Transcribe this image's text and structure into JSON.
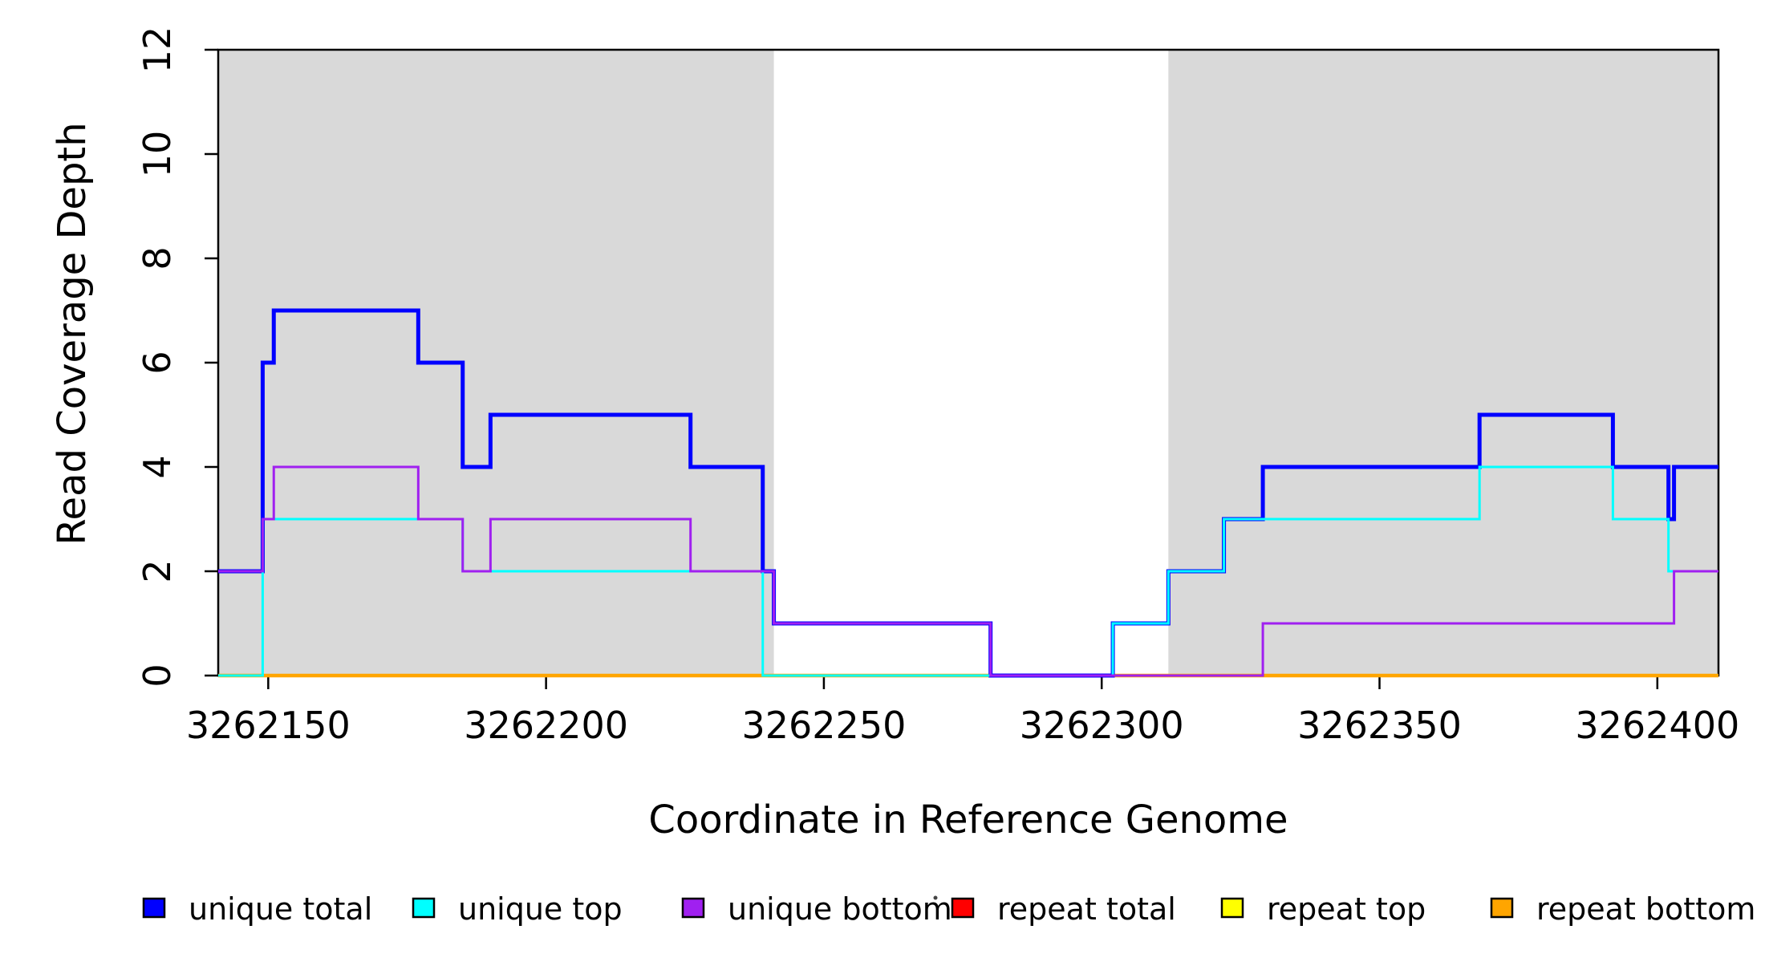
{
  "chart_data": {
    "type": "line",
    "subtype": "step-coverage",
    "title": "",
    "xlabel": "Coordinate in Reference Genome",
    "ylabel": "Read Coverage Depth",
    "xlim": [
      3262141,
      3262411
    ],
    "ylim": [
      0,
      12
    ],
    "grid": false,
    "legend_position": "bottom",
    "x_ticks": [
      3262150,
      3262200,
      3262250,
      3262300,
      3262350,
      3262400
    ],
    "x_tick_labels": [
      "3262150",
      "3262200",
      "3262250",
      "3262300",
      "3262350",
      "3262400"
    ],
    "y_ticks": [
      0,
      2,
      4,
      6,
      8,
      10,
      12
    ],
    "y_tick_labels": [
      "0",
      "2",
      "4",
      "6",
      "8",
      "10",
      "12"
    ],
    "colors": {
      "background": "#FFFFFF",
      "axis": "#000000",
      "shaded_region": "#D9D9D9",
      "unique_total": "#0000FF",
      "unique_top": "#00FFFF",
      "unique_bottom": "#A020F0",
      "repeat_total": "#FF0000",
      "repeat_top": "#FFFF00",
      "repeat_bottom": "#FFA500"
    },
    "shaded_regions": [
      {
        "name": "repeat-region-left",
        "x0": 3262141,
        "x1": 3262241
      },
      {
        "name": "repeat-region-right",
        "x0": 3262312,
        "x1": 3262411
      }
    ],
    "series": [
      {
        "name": "repeat total",
        "key": "repeat_total",
        "color": "#FF0000",
        "width": 3,
        "steps": [
          [
            3262141,
            0
          ]
        ]
      },
      {
        "name": "repeat top",
        "key": "repeat_top",
        "color": "#FFFF00",
        "width": 3,
        "steps": [
          [
            3262141,
            0
          ]
        ]
      },
      {
        "name": "repeat bottom",
        "key": "repeat_bottom",
        "color": "#FFA500",
        "width": 4.5,
        "steps": [
          [
            3262141,
            0
          ]
        ]
      },
      {
        "name": "unique total",
        "key": "unique_total",
        "color": "#0000FF",
        "width": 5,
        "steps": [
          [
            3262141,
            2
          ],
          [
            3262149,
            6
          ],
          [
            3262151,
            7
          ],
          [
            3262177,
            6
          ],
          [
            3262185,
            4
          ],
          [
            3262190,
            5
          ],
          [
            3262226,
            4
          ],
          [
            3262239,
            2
          ],
          [
            3262241,
            1
          ],
          [
            3262280,
            0
          ],
          [
            3262302,
            1
          ],
          [
            3262312,
            2
          ],
          [
            3262322,
            3
          ],
          [
            3262329,
            4
          ],
          [
            3262368,
            5
          ],
          [
            3262392,
            4
          ],
          [
            3262402,
            3
          ],
          [
            3262403,
            4
          ]
        ]
      },
      {
        "name": "unique top",
        "key": "unique_top",
        "color": "#00FFFF",
        "width": 3,
        "steps": [
          [
            3262141,
            0
          ],
          [
            3262149,
            3
          ],
          [
            3262185,
            2
          ],
          [
            3262239,
            0
          ],
          [
            3262302,
            1
          ],
          [
            3262312,
            2
          ],
          [
            3262322,
            3
          ],
          [
            3262368,
            4
          ],
          [
            3262392,
            3
          ],
          [
            3262402,
            2
          ]
        ]
      },
      {
        "name": "unique bottom",
        "key": "unique_bottom",
        "color": "#A020F0",
        "width": 3,
        "steps": [
          [
            3262141,
            2
          ],
          [
            3262149,
            3
          ],
          [
            3262151,
            4
          ],
          [
            3262177,
            3
          ],
          [
            3262185,
            2
          ],
          [
            3262190,
            3
          ],
          [
            3262226,
            2
          ],
          [
            3262241,
            1
          ],
          [
            3262280,
            0
          ],
          [
            3262329,
            1
          ],
          [
            3262403,
            2
          ]
        ]
      }
    ],
    "legend": [
      {
        "label": "unique total",
        "color": "#0000FF"
      },
      {
        "label": "unique top",
        "color": "#00FFFF"
      },
      {
        "label": "unique bottom",
        "color": "#A020F0"
      },
      {
        "label": "repeat total",
        "color": "#FF0000"
      },
      {
        "label": "repeat top",
        "color": "#FFFF00"
      },
      {
        "label": "repeat bottom",
        "color": "#FFA500"
      }
    ],
    "stray_mark": {
      "x": 1166,
      "y": 1119
    }
  }
}
